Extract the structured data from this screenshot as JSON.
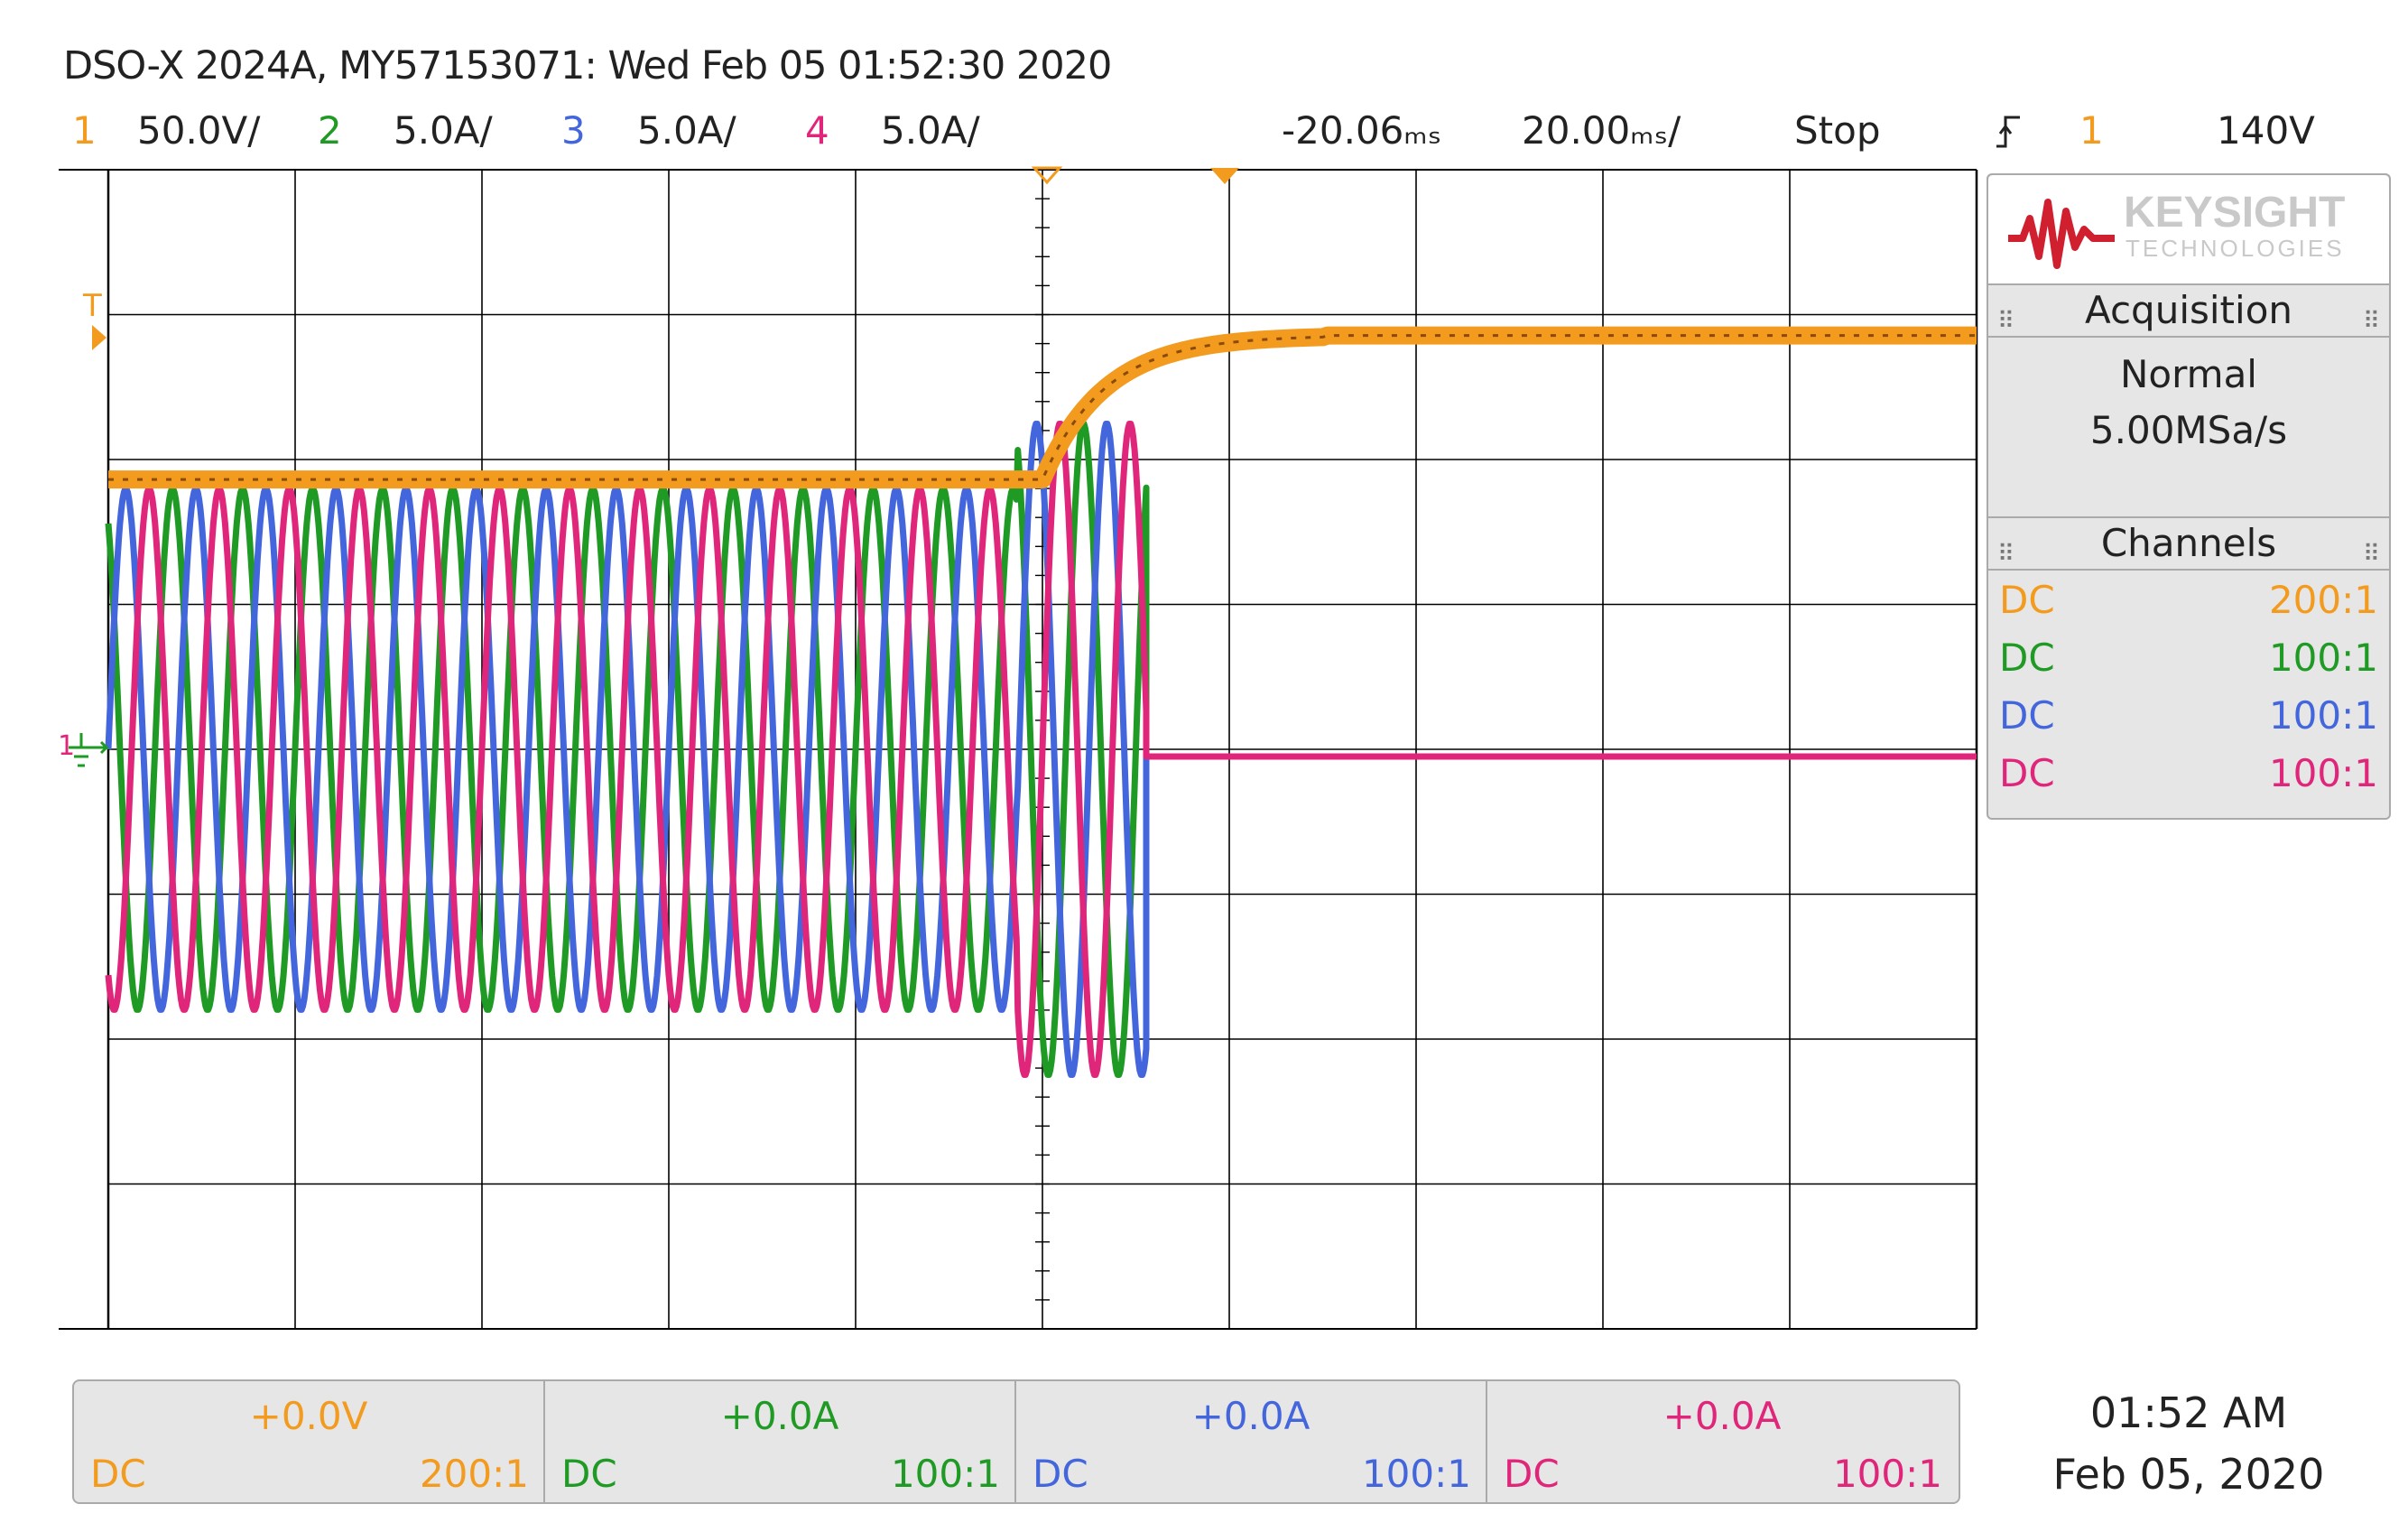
{
  "header": {
    "title": "DSO-X 2024A, MY57153071: Wed Feb 05 01:52:30 2020",
    "channels": [
      {
        "num": "1",
        "scale": "50.0V/",
        "color": "#f29b1e"
      },
      {
        "num": "2",
        "scale": "5.0A/",
        "color": "#1f9a24"
      },
      {
        "num": "3",
        "scale": "5.0A/",
        "color": "#4466dd"
      },
      {
        "num": "4",
        "scale": "5.0A/",
        "color": "#e0267a"
      }
    ],
    "delay": "-20.06ₘₛ",
    "timebase": "20.00ₘₛ/",
    "run_state": "Stop",
    "trigger_icon": "trigger-edge-icon",
    "trigger_source": "1",
    "trigger_level": "140V"
  },
  "side_panel": {
    "brand": "KEYSIGHT",
    "brand_sub": "TECHNOLOGIES",
    "acquisition_title": "Acquisition",
    "acquisition_mode": "Normal",
    "sample_rate": "5.00MSa/s",
    "channels_title": "Channels",
    "channels": [
      {
        "coupling": "DC",
        "probe": "200:1",
        "color": "#f29b1e"
      },
      {
        "coupling": "DC",
        "probe": "100:1",
        "color": "#1f9a24"
      },
      {
        "coupling": "DC",
        "probe": "100:1",
        "color": "#4466dd"
      },
      {
        "coupling": "DC",
        "probe": "100:1",
        "color": "#e0267a"
      }
    ]
  },
  "bottom_panel": [
    {
      "offset": "+0.0V",
      "coupling": "DC",
      "probe": "200:1",
      "color": "#f29b1e"
    },
    {
      "offset": "+0.0A",
      "coupling": "DC",
      "probe": "100:1",
      "color": "#1f9a24"
    },
    {
      "offset": "+0.0A",
      "coupling": "DC",
      "probe": "100:1",
      "color": "#4466dd"
    },
    {
      "offset": "+0.0A",
      "coupling": "DC",
      "probe": "100:1",
      "color": "#e0267a"
    }
  ],
  "clock": {
    "time": "01:52 AM",
    "date": "Feb 05, 2020"
  },
  "markers": {
    "trigger_level": "T",
    "ground": "1"
  },
  "chart_data": {
    "type": "line",
    "x_unit": "ms",
    "x_range": [
      -180,
      180
    ],
    "series": [
      {
        "channel": "1",
        "color": "#f29b1e",
        "unit": "V",
        "description_values": {
          "before_ms": [
            -180,
            -10
          ],
          "level_before_V": 95,
          "level_after_V": 140
        }
      },
      {
        "channel": "2",
        "color": "#1f9a24",
        "unit": "A",
        "amplitude_A": 9.0,
        "period_ms": 13.5,
        "off_at_ms": 20
      },
      {
        "channel": "3",
        "color": "#4466dd",
        "unit": "A",
        "amplitude_A": 9.0,
        "period_ms": 13.5,
        "off_at_ms": 20
      },
      {
        "channel": "4",
        "color": "#e0267a",
        "unit": "A",
        "amplitude_A": 9.0,
        "period_ms": 13.5,
        "off_at_ms": 20
      }
    ]
  }
}
